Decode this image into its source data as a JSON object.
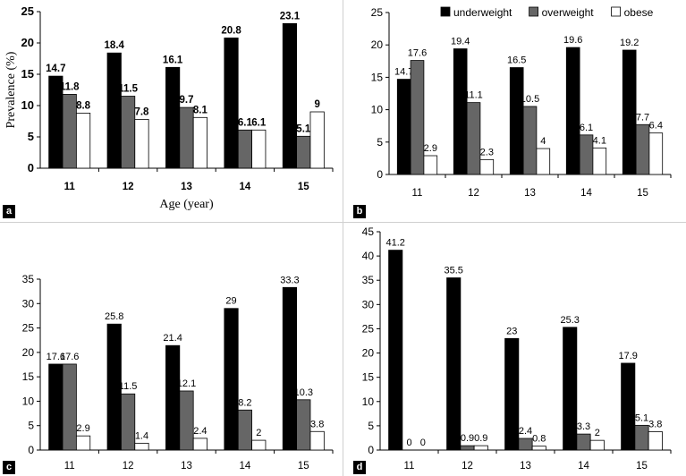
{
  "figure": {
    "series_colors": [
      "#000000",
      "#666666",
      "#ffffff"
    ],
    "edge_color": "#000000"
  },
  "chart_data": [
    {
      "type": "bar",
      "panel_label": "a",
      "title": "",
      "xlabel": "Age (year)",
      "ylabel": "Prevalence (%)",
      "ylim": [
        0,
        25
      ],
      "yticks": [
        0,
        5,
        10,
        15,
        20,
        25
      ],
      "categories": [
        "11",
        "12",
        "13",
        "14",
        "15"
      ],
      "series": [
        {
          "name": "underweight",
          "values": [
            14.7,
            18.4,
            16.1,
            20.8,
            23.1
          ]
        },
        {
          "name": "overweight",
          "values": [
            11.8,
            11.5,
            9.7,
            6.1,
            5.1
          ]
        },
        {
          "name": "obese",
          "values": [
            8.8,
            7.8,
            8.1,
            6.1,
            9
          ]
        }
      ],
      "data_labels": [
        [
          "14.7",
          "18.4",
          "16.1",
          "20.8",
          "23.1"
        ],
        [
          "11.8",
          "11.5",
          "9.7",
          "6.1",
          "5.1"
        ],
        [
          "8.8",
          "7.8",
          "8.1",
          "6.1",
          "9"
        ]
      ],
      "legend": "none"
    },
    {
      "type": "bar",
      "panel_label": "b",
      "title": "",
      "xlabel": "",
      "ylabel": "",
      "ylim": [
        0,
        25
      ],
      "yticks": [
        0,
        5,
        10,
        15,
        20,
        25
      ],
      "categories": [
        "11",
        "12",
        "13",
        "14",
        "15"
      ],
      "series": [
        {
          "name": "underweight",
          "values": [
            14.7,
            19.4,
            16.5,
            19.6,
            19.2
          ]
        },
        {
          "name": "overweight",
          "values": [
            17.6,
            11.1,
            10.5,
            6.1,
            7.7
          ]
        },
        {
          "name": "obese",
          "values": [
            2.9,
            2.3,
            4,
            4.1,
            6.4
          ]
        }
      ],
      "data_labels": [
        [
          "14.7",
          "19.4",
          "16.5",
          "19.6",
          "19.2"
        ],
        [
          "17.6",
          "11.1",
          "10.5",
          "6.1",
          "7.7"
        ],
        [
          "2.9",
          "2.3",
          "4",
          "4.1",
          "6.4"
        ]
      ],
      "legend": "top"
    },
    {
      "type": "bar",
      "panel_label": "c",
      "title": "",
      "xlabel": "",
      "ylabel": "",
      "ylim": [
        0,
        35
      ],
      "yticks": [
        0,
        5,
        10,
        15,
        20,
        25,
        30,
        35
      ],
      "categories": [
        "11",
        "12",
        "13",
        "14",
        "15"
      ],
      "series": [
        {
          "name": "underweight",
          "values": [
            17.6,
            25.8,
            21.4,
            29,
            33.3
          ]
        },
        {
          "name": "overweight",
          "values": [
            17.6,
            11.5,
            12.1,
            8.2,
            10.3
          ]
        },
        {
          "name": "obese",
          "values": [
            2.9,
            1.4,
            2.4,
            2,
            3.8
          ]
        }
      ],
      "data_labels": [
        [
          "17.6",
          "25.8",
          "21.4",
          "29",
          "33.3"
        ],
        [
          "17.6",
          "11.5",
          "12.1",
          "8.2",
          "10.3"
        ],
        [
          "2.9",
          "1.4",
          "2.4",
          "2",
          "3.8"
        ]
      ],
      "legend": "none"
    },
    {
      "type": "bar",
      "panel_label": "d",
      "title": "",
      "xlabel": "",
      "ylabel": "",
      "ylim": [
        0,
        45
      ],
      "yticks": [
        0,
        5,
        10,
        15,
        20,
        25,
        30,
        35,
        40,
        45
      ],
      "categories": [
        "11",
        "12",
        "13",
        "14",
        "15"
      ],
      "series": [
        {
          "name": "underweight",
          "values": [
            41.2,
            35.5,
            23,
            25.3,
            17.9
          ]
        },
        {
          "name": "overweight",
          "values": [
            0,
            0.9,
            2.4,
            3.3,
            5.1
          ]
        },
        {
          "name": "obese",
          "values": [
            0,
            0.9,
            0.8,
            2,
            3.8
          ]
        }
      ],
      "data_labels": [
        [
          "41.2",
          "35.5",
          "23",
          "25.3",
          "17.9"
        ],
        [
          "0",
          "0.9",
          "2.4",
          "3.3",
          "5.1"
        ],
        [
          "0",
          "0.9",
          "0.8",
          "2",
          "3.8"
        ]
      ],
      "legend": "none"
    }
  ]
}
